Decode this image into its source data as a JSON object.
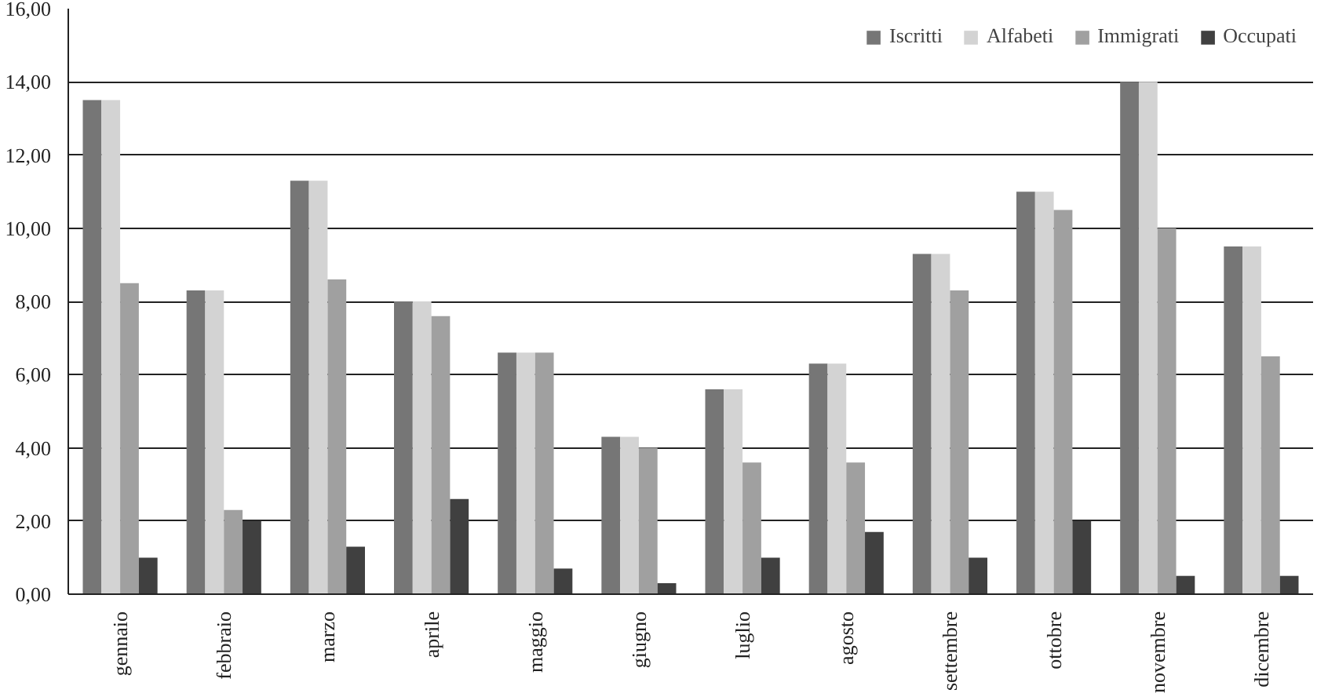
{
  "chart_data": {
    "type": "bar",
    "categories": [
      "gennaio",
      "febbraio",
      "marzo",
      "aprile",
      "maggio",
      "giugno",
      "luglio",
      "agosto",
      "settembre",
      "ottobre",
      "novembre",
      "dicembre"
    ],
    "series": [
      {
        "name": "Iscritti",
        "color": "#767676",
        "values": [
          13.5,
          8.3,
          11.3,
          8.0,
          6.6,
          4.3,
          5.6,
          6.3,
          9.3,
          11.0,
          14.0,
          9.5
        ]
      },
      {
        "name": "Alfabeti",
        "color": "#d3d3d3",
        "values": [
          13.5,
          8.3,
          11.3,
          8.0,
          6.6,
          4.3,
          5.6,
          6.3,
          9.3,
          11.0,
          14.0,
          9.5
        ]
      },
      {
        "name": "Immigrati",
        "color": "#a0a0a0",
        "values": [
          8.5,
          2.3,
          8.6,
          7.6,
          6.6,
          4.0,
          3.6,
          3.6,
          8.3,
          10.5,
          10.0,
          6.5
        ]
      },
      {
        "name": "Occupati",
        "color": "#404040",
        "values": [
          1.0,
          2.0,
          1.3,
          2.6,
          0.7,
          0.3,
          1.0,
          1.7,
          1.0,
          2.0,
          0.5,
          0.5
        ]
      }
    ],
    "ylim": [
      0,
      16
    ],
    "yticks": [
      {
        "value": 0,
        "label": "0,00"
      },
      {
        "value": 2,
        "label": "2,00"
      },
      {
        "value": 4,
        "label": "4,00"
      },
      {
        "value": 6,
        "label": "6,00"
      },
      {
        "value": 8,
        "label": "8,00"
      },
      {
        "value": 10,
        "label": "10,00"
      },
      {
        "value": 12,
        "label": "12,00"
      },
      {
        "value": 14,
        "label": "14,00"
      },
      {
        "value": 16,
        "label": "16,00"
      }
    ],
    "grid": "y",
    "legend": "top right"
  }
}
